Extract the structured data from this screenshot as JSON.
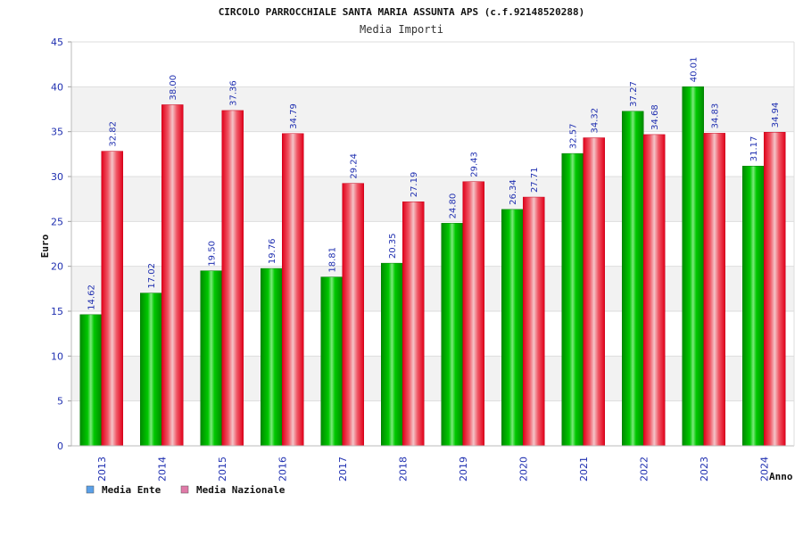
{
  "chart_data": {
    "type": "bar",
    "title": "CIRCOLO PARROCCHIALE SANTA MARIA ASSUNTA APS (c.f.92148520288)",
    "subtitle": "Media Importi",
    "xlabel": "Anno",
    "ylabel": "Euro",
    "ylim": [
      0,
      45
    ],
    "yticks": [
      0,
      5,
      10,
      15,
      20,
      25,
      30,
      35,
      40,
      45
    ],
    "grid": true,
    "legend_position": "bottom-left",
    "categories": [
      "2013",
      "2014",
      "2015",
      "2016",
      "2017",
      "2018",
      "2019",
      "2020",
      "2021",
      "2022",
      "2023",
      "2024"
    ],
    "series": [
      {
        "name": "Media Ente",
        "color": "#00aa00",
        "legend_color": "#5aa0e8",
        "values": [
          14.62,
          17.02,
          19.5,
          19.76,
          18.81,
          20.35,
          24.8,
          26.34,
          32.57,
          37.27,
          40.01,
          31.17
        ],
        "labels": [
          "14.62",
          "17.02",
          "19.50",
          "19.76",
          "18.81",
          "20.35",
          "24.80",
          "26.34",
          "32.57",
          "37.27",
          "40.01",
          "31.17"
        ]
      },
      {
        "name": "Media Nazionale",
        "color": "#ee1122",
        "legend_color": "#e07aa8",
        "values": [
          32.82,
          38.0,
          37.36,
          34.79,
          29.24,
          27.19,
          29.43,
          27.71,
          34.32,
          34.68,
          34.83,
          34.94
        ],
        "labels": [
          "32.82",
          "38.00",
          "37.36",
          "34.79",
          "29.24",
          "27.19",
          "29.43",
          "27.71",
          "34.32",
          "34.68",
          "34.83",
          "34.94"
        ]
      }
    ]
  }
}
